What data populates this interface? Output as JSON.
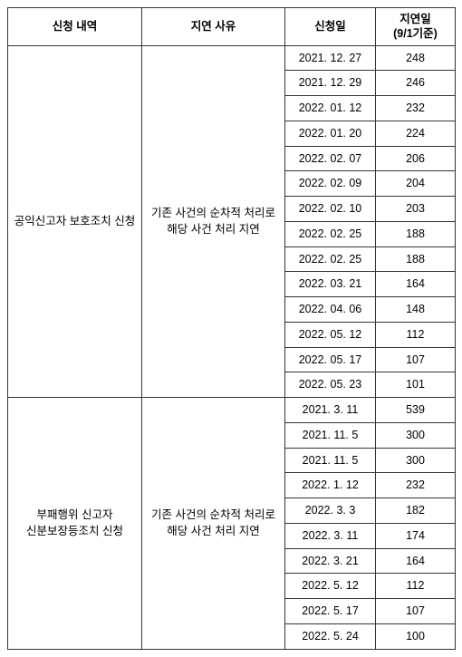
{
  "headers": {
    "col1": "신청 내역",
    "col2": "지연 사유",
    "col3": "신청일",
    "col4_line1": "지연일",
    "col4_line2": "(9/1기준)"
  },
  "groups": [
    {
      "request": "공익신고자 보호조치 신청",
      "reason_line1": "기존 사건의 순차적 처리로",
      "reason_line2": "해당 사건 처리 지연",
      "rows": [
        {
          "date": "2021. 12. 27",
          "days": "248"
        },
        {
          "date": "2021. 12. 29",
          "days": "246"
        },
        {
          "date": "2022. 01. 12",
          "days": "232"
        },
        {
          "date": "2022. 01. 20",
          "days": "224"
        },
        {
          "date": "2022. 02. 07",
          "days": "206"
        },
        {
          "date": "2022. 02. 09",
          "days": "204"
        },
        {
          "date": "2022. 02. 10",
          "days": "203"
        },
        {
          "date": "2022. 02. 25",
          "days": "188"
        },
        {
          "date": "2022. 02. 25",
          "days": "188"
        },
        {
          "date": "2022. 03. 21",
          "days": "164"
        },
        {
          "date": "2022. 04. 06",
          "days": "148"
        },
        {
          "date": "2022. 05. 12",
          "days": "112"
        },
        {
          "date": "2022. 05. 17",
          "days": "107"
        },
        {
          "date": "2022. 05. 23",
          "days": "101"
        }
      ]
    },
    {
      "request_line1": "부패행위 신고자",
      "request_line2": "신분보장등조치 신청",
      "reason_line1": "기존 사건의 순차적 처리로",
      "reason_line2": "해당 사건 처리 지연",
      "rows": [
        {
          "date": "2021. 3. 11",
          "days": "539"
        },
        {
          "date": "2021. 11. 5",
          "days": "300"
        },
        {
          "date": "2021. 11. 5",
          "days": "300"
        },
        {
          "date": "2022. 1. 12",
          "days": "232"
        },
        {
          "date": "2022. 3. 3",
          "days": "182"
        },
        {
          "date": "2022. 3. 11",
          "days": "174"
        },
        {
          "date": "2022. 3. 21",
          "days": "164"
        },
        {
          "date": "2022. 5. 12",
          "days": "112"
        },
        {
          "date": "2022. 5. 17",
          "days": "107"
        },
        {
          "date": "2022. 5. 24",
          "days": "100"
        }
      ]
    }
  ],
  "style": {
    "border_color": "#333333",
    "background": "#ffffff",
    "font_size_pt": 9.5,
    "header_weight": "700"
  }
}
